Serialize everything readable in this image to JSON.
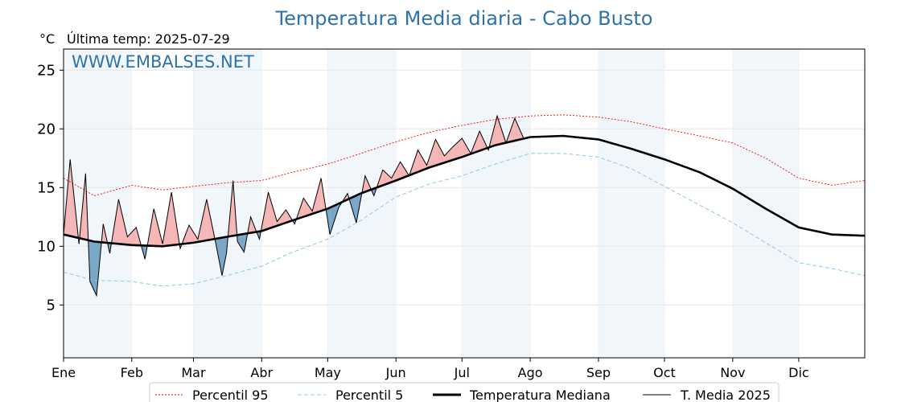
{
  "chart_data": {
    "type": "line",
    "title": "Temperatura Media diaria - Cabo Busto",
    "unit": "°C",
    "last_update": "Última temp: 2025-07-29",
    "watermark": "WWW.EMBALSES.NET",
    "xlabel": "",
    "ylabel": "°C",
    "ylim": [
      0.5,
      26.8
    ],
    "yticks": [
      5,
      10,
      15,
      20,
      25
    ],
    "x_range_days": [
      1,
      365
    ],
    "months": [
      "Ene",
      "Feb",
      "Mar",
      "Abr",
      "May",
      "Jun",
      "Jul",
      "Ago",
      "Sep",
      "Oct",
      "Nov",
      "Dic"
    ],
    "month_start_days": [
      1,
      32,
      60,
      91,
      121,
      152,
      182,
      213,
      244,
      274,
      305,
      335
    ],
    "grid": true,
    "legend_position": "bottom",
    "colors": {
      "p95": "#ff0000",
      "p5": "#8ec9e3",
      "median": "#000000",
      "current": "#000000",
      "above_fill": "#f4b6b6",
      "below_fill": "#7aa7c7",
      "extreme_above_fill": "#e06666",
      "extreme_below_fill": "#1f4e79",
      "month_shade": "#f1f6fb",
      "title": "#2f72a8"
    },
    "series": [
      {
        "name": "Percentil 95",
        "style": "dotted-red",
        "x": [
          1,
          15,
          32,
          46,
          60,
          75,
          91,
          105,
          121,
          136,
          152,
          167,
          182,
          197,
          213,
          228,
          244,
          259,
          274,
          290,
          305,
          320,
          335,
          350,
          365
        ],
        "values": [
          15.8,
          14.3,
          15.2,
          14.8,
          15.1,
          15.4,
          15.6,
          16.3,
          17.0,
          17.9,
          18.9,
          19.7,
          20.3,
          20.8,
          21.1,
          21.2,
          21.0,
          20.6,
          20.0,
          19.4,
          18.8,
          17.5,
          15.8,
          15.2,
          15.6
        ]
      },
      {
        "name": "Percentil 5",
        "style": "dashed-lightblue",
        "x": [
          1,
          15,
          32,
          46,
          60,
          75,
          91,
          105,
          121,
          136,
          152,
          167,
          182,
          197,
          213,
          228,
          244,
          259,
          274,
          290,
          305,
          320,
          335,
          350,
          365
        ],
        "values": [
          7.8,
          7.1,
          7.0,
          6.6,
          6.8,
          7.5,
          8.3,
          9.5,
          10.6,
          12.2,
          14.2,
          15.3,
          16.0,
          17.0,
          17.9,
          17.9,
          17.6,
          16.6,
          15.1,
          13.5,
          12.0,
          10.3,
          8.6,
          8.1,
          7.5
        ]
      },
      {
        "name": "Temperatura Mediana",
        "style": "thick-black",
        "x": [
          1,
          15,
          32,
          46,
          60,
          75,
          91,
          105,
          121,
          136,
          152,
          167,
          182,
          197,
          213,
          228,
          244,
          259,
          274,
          290,
          305,
          320,
          335,
          350,
          365
        ],
        "values": [
          11.0,
          10.4,
          10.1,
          10.0,
          10.3,
          10.8,
          11.3,
          12.2,
          13.2,
          14.5,
          15.6,
          16.7,
          17.6,
          18.6,
          19.3,
          19.4,
          19.1,
          18.3,
          17.4,
          16.3,
          14.9,
          13.2,
          11.6,
          11.0,
          10.9
        ]
      },
      {
        "name": "T. Media 2025",
        "style": "thin-black",
        "x": [
          1,
          4,
          8,
          11,
          13,
          16,
          19,
          22,
          26,
          30,
          34,
          38,
          42,
          46,
          50,
          54,
          58,
          62,
          66,
          70,
          73,
          75,
          78,
          80,
          83,
          86,
          90,
          94,
          98,
          102,
          106,
          110,
          114,
          118,
          122,
          126,
          130,
          134,
          138,
          142,
          146,
          150,
          154,
          158,
          162,
          166,
          170,
          174,
          178,
          182,
          186,
          190,
          194,
          198,
          202,
          206,
          210
        ],
        "values": [
          11.0,
          17.4,
          10.2,
          16.2,
          7.0,
          5.8,
          11.9,
          9.4,
          14.0,
          10.8,
          11.6,
          8.9,
          13.2,
          10.2,
          14.6,
          9.8,
          11.8,
          10.6,
          14.0,
          10.4,
          7.5,
          9.4,
          15.6,
          10.4,
          9.5,
          12.5,
          10.6,
          14.6,
          12.1,
          13.1,
          11.9,
          14.1,
          13.0,
          15.8,
          11.0,
          13.3,
          14.5,
          12.0,
          16.0,
          14.3,
          16.5,
          15.8,
          17.2,
          16.0,
          18.2,
          16.9,
          19.1,
          17.7,
          18.5,
          19.2,
          17.9,
          19.8,
          18.2,
          21.1,
          18.8,
          20.9,
          19.2
        ]
      }
    ]
  }
}
